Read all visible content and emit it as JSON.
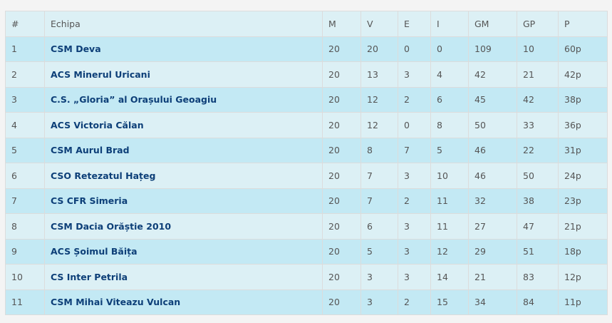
{
  "headers": [
    "#",
    "Echipa",
    "M",
    "V",
    "E",
    "I",
    "GM",
    "GP",
    "P"
  ],
  "rows": [
    [
      "1",
      "CSM Deva",
      "20",
      "20",
      "0",
      "0",
      "109",
      "10",
      "60p"
    ],
    [
      "2",
      "ACS Minerul Uricani",
      "20",
      "13",
      "3",
      "4",
      "42",
      "21",
      "42p"
    ],
    [
      "3",
      "C.S. „Gloria” al Orașului Geoagiu",
      "20",
      "12",
      "2",
      "6",
      "45",
      "42",
      "38p"
    ],
    [
      "4",
      "ACS Victoria Călan",
      "20",
      "12",
      "0",
      "8",
      "50",
      "33",
      "36p"
    ],
    [
      "5",
      "CSM Aurul Brad",
      "20",
      "8",
      "7",
      "5",
      "46",
      "22",
      "31p"
    ],
    [
      "6",
      "CSO Retezatul Hațeg",
      "20",
      "7",
      "3",
      "10",
      "46",
      "50",
      "24p"
    ],
    [
      "7",
      "CS CFR Simeria",
      "20",
      "7",
      "2",
      "11",
      "32",
      "38",
      "23p"
    ],
    [
      "8",
      "CSM Dacia Orăștie 2010",
      "20",
      "6",
      "3",
      "11",
      "27",
      "47",
      "21p"
    ],
    [
      "9",
      "ACS Șoimul Băița",
      "20",
      "5",
      "3",
      "12",
      "29",
      "51",
      "18p"
    ],
    [
      "10",
      "CS Inter Petrila",
      "20",
      "3",
      "3",
      "14",
      "21",
      "83",
      "12p"
    ],
    [
      "11",
      "CSM Mihai Viteazu Vulcan",
      "20",
      "3",
      "2",
      "15",
      "34",
      "84",
      "11p"
    ]
  ]
}
